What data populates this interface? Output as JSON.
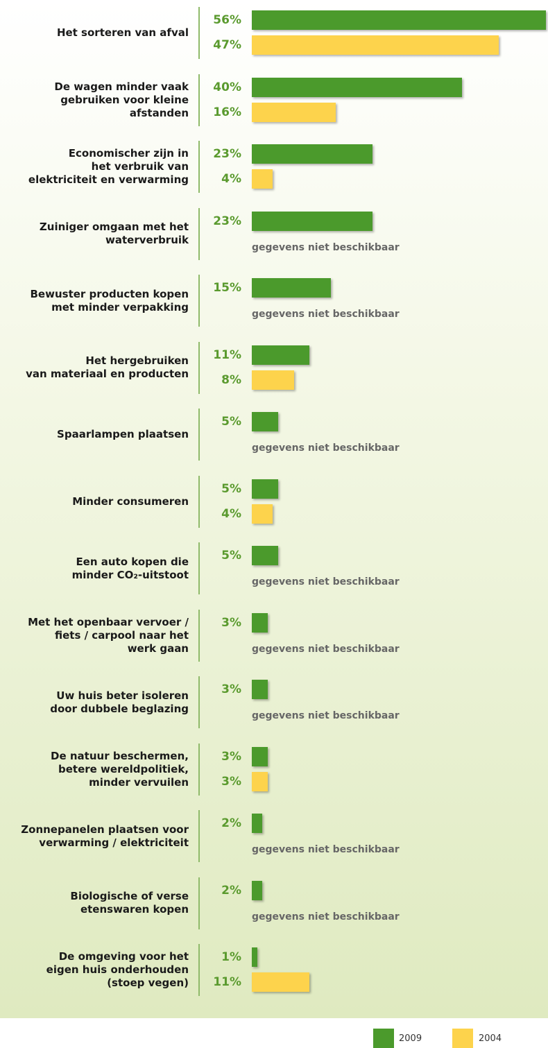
{
  "chart_data": {
    "type": "bar",
    "orientation": "horizontal",
    "categories": [
      "Het sorteren van afval",
      "De wagen minder vaak\ngebruiken voor kleine\nafstanden",
      "Economischer zijn in\nhet verbruik van\nelektriciteit en verwarming",
      "Zuiniger omgaan met het\nwaterverbruik",
      "Bewuster producten kopen\nmet minder verpakking",
      "Het hergebruiken\nvan materiaal en producten",
      "Spaarlampen plaatsen",
      "Minder consumeren",
      "Een auto kopen die\nminder CO₂-uitstoot",
      "Met het openbaar vervoer /\nfiets / carpool naar het\nwerk gaan",
      "Uw huis beter isoleren\ndoor dubbele beglazing",
      "De natuur beschermen,\nbetere wereldpolitiek,\nminder vervuilen",
      "Zonnepanelen plaatsen voor\nverwarming / elektriciteit",
      "Biologische of verse\netenswaren kopen",
      "De omgeving voor het\neigen huis onderhouden\n(stoep vegen)"
    ],
    "series": [
      {
        "name": "2009",
        "color": "#4b9a2c",
        "values": [
          56,
          40,
          23,
          23,
          15,
          11,
          5,
          5,
          5,
          3,
          3,
          3,
          2,
          2,
          1
        ],
        "value_labels": [
          "56%",
          "40%",
          "23%",
          "23%",
          "15%",
          "11%",
          "5%",
          "5%",
          "5%",
          "3%",
          "3%",
          "3%",
          "2%",
          "2%",
          "1%"
        ]
      },
      {
        "name": "2004",
        "color": "#fdd34c",
        "values": [
          47,
          16,
          4,
          null,
          null,
          8,
          null,
          4,
          null,
          null,
          null,
          3,
          null,
          null,
          11
        ],
        "value_labels": [
          "47%",
          "16%",
          "4%",
          "gegevens niet beschikbaar",
          "gegevens niet beschikbaar",
          "8%",
          "gegevens niet beschikbaar",
          "4%",
          "gegevens niet beschikbaar",
          "gegevens niet beschikbaar",
          "gegevens niet beschikbaar",
          "3%",
          "gegevens niet beschikbaar",
          "gegevens niet beschikbaar",
          "11%"
        ]
      }
    ],
    "legend": "bottom-right"
  }
}
